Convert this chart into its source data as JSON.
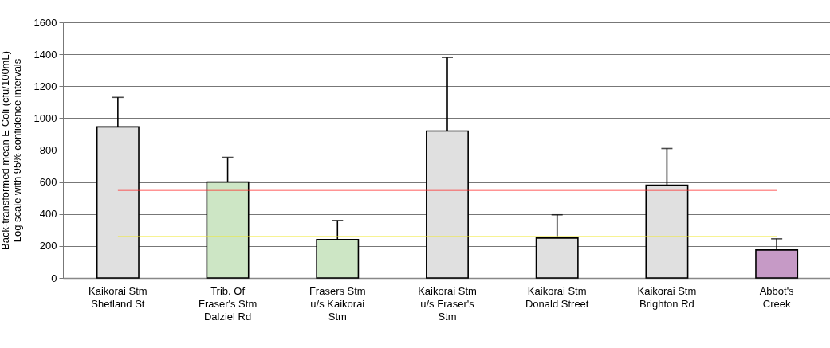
{
  "chart_data": {
    "type": "bar",
    "ylabel": "Back-transformed mean E Coli  (cfu/100mL)\nLog scale with 95% confidence intervals",
    "categories": [
      "Kaikorai Stm\nShetland St",
      "Trib. Of\nFraser's Stm\nDalziel Rd",
      "Frasers Stm\nu/s Kaikorai\nStm",
      "Kaikorai Stm\nu/s Fraser's\nStm",
      "Kaikorai Stm\nDonald Street",
      "Kaikorai Stm\nBrighton Rd",
      "Abbot's\nCreek"
    ],
    "values": [
      945,
      600,
      240,
      920,
      250,
      580,
      175
    ],
    "colors": [
      "#e0e0e0",
      "#cde6c5",
      "#cde6c5",
      "#e0e0e0",
      "#e0e0e0",
      "#e0e0e0",
      "#c69ac6"
    ],
    "errors": [
      [
        945,
        1130
      ],
      [
        600,
        755
      ],
      [
        240,
        360
      ],
      [
        920,
        1380
      ],
      [
        250,
        395
      ],
      [
        580,
        810
      ],
      [
        175,
        245
      ]
    ],
    "ylim": [
      0,
      1600
    ],
    "yticks": [
      0,
      200,
      400,
      600,
      800,
      1000,
      1200,
      1400,
      1600
    ],
    "grid": "y",
    "ref_lines": [
      {
        "axis": "y",
        "value": 550,
        "color": "#ff2a2a"
      },
      {
        "axis": "y",
        "value": 258,
        "color": "#f0e82a"
      }
    ]
  }
}
